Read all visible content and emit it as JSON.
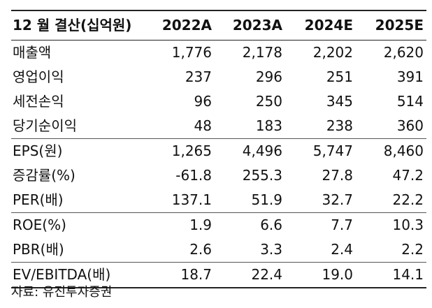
{
  "table": {
    "header": {
      "label": "12 월 결산(십억원)",
      "years": [
        "2022A",
        "2023A",
        "2024E",
        "2025E"
      ]
    },
    "rows": [
      {
        "label": "매출액",
        "values": [
          "1,776",
          "2,178",
          "2,202",
          "2,620"
        ]
      },
      {
        "label": "영업이익",
        "values": [
          "237",
          "296",
          "251",
          "391"
        ]
      },
      {
        "label": "세전손익",
        "values": [
          "96",
          "250",
          "345",
          "514"
        ]
      },
      {
        "label": "당기순이익",
        "values": [
          "48",
          "183",
          "238",
          "360"
        ]
      },
      {
        "label": "EPS(원)",
        "values": [
          "1,265",
          "4,496",
          "5,747",
          "8,460"
        ]
      },
      {
        "label": "증감률(%)",
        "values": [
          "-61.8",
          "255.3",
          "27.8",
          "47.2"
        ]
      },
      {
        "label": "PER(배)",
        "values": [
          "137.1",
          "51.9",
          "32.7",
          "22.2"
        ]
      },
      {
        "label": "ROE(%)",
        "values": [
          "1.9",
          "6.6",
          "7.7",
          "10.3"
        ]
      },
      {
        "label": "PBR(배)",
        "values": [
          "2.6",
          "3.3",
          "2.4",
          "2.2"
        ]
      },
      {
        "label": "EV/EBITDA(배)",
        "values": [
          "18.7",
          "22.4",
          "19.0",
          "14.1"
        ]
      }
    ]
  },
  "source": "자료: 유진투자증권"
}
